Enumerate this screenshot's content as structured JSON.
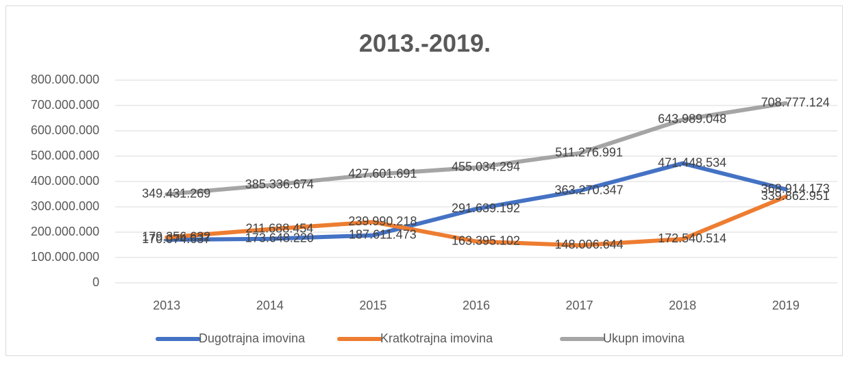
{
  "chart_data": {
    "type": "line",
    "title": "2013.-2019.",
    "categories": [
      "2013",
      "2014",
      "2015",
      "2016",
      "2017",
      "2018",
      "2019"
    ],
    "series": [
      {
        "name": "Dugotrajna imovina",
        "color": "#4472c4",
        "values": [
          170074637,
          173648220,
          187611473,
          291639192,
          363270347,
          471448534,
          368914173
        ],
        "value_labels": [
          "170.074.637",
          "173.648.220",
          "187.611.473",
          "291.639.192",
          "363.270.347",
          "471.448.534",
          "368.914.173"
        ]
      },
      {
        "name": "Kratkotrajna imovina",
        "color": "#ed7d31",
        "values": [
          179356632,
          211688454,
          239990218,
          163395102,
          148006644,
          172540514,
          339862951
        ],
        "value_labels": [
          "179.356.632",
          "211.688.454",
          "239.990.218",
          "163.395.102",
          "148.006.644",
          "172.540.514",
          "339.862.951"
        ]
      },
      {
        "name": "Ukupn imovina",
        "color": "#a5a5a5",
        "values": [
          349431269,
          385336674,
          427601691,
          455034294,
          511276991,
          643989048,
          708777124
        ],
        "value_labels": [
          "349.431.269",
          "385.336.674",
          "427.601.691",
          "455.034.294",
          "511.276.991",
          "643.989.048",
          "708.777.124"
        ]
      }
    ],
    "ylim": [
      0,
      800000000
    ],
    "yticks": [
      0,
      {
        "value": 100000000,
        "label": "100.000.000"
      },
      {
        "value": 200000000,
        "label": "200.000.000"
      },
      {
        "value": 300000000,
        "label": "300.000.000"
      },
      {
        "value": 400000000,
        "label": "400.000.000"
      },
      {
        "value": 500000000,
        "label": "500.000.000"
      },
      {
        "value": 600000000,
        "label": "600.000.000"
      },
      {
        "value": 700000000,
        "label": "700.000.000"
      },
      {
        "value": 800000000,
        "label": "800.000.000"
      }
    ],
    "grid": true,
    "legend": "bottom"
  }
}
